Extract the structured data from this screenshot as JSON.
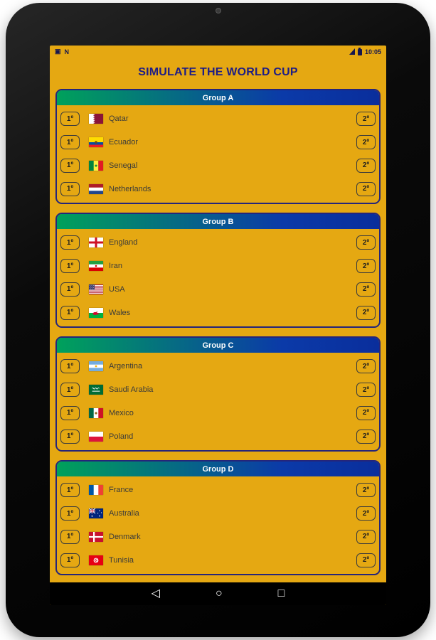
{
  "status_bar": {
    "time": "10:05",
    "left_icon_glyphs": [
      "▣",
      "N"
    ],
    "left_icon_names": [
      "image-notification-icon",
      "nfc-icon"
    ],
    "right_icon_names": [
      "signal-icon",
      "battery-icon"
    ]
  },
  "header": {
    "title": "SIMULATE THE WORLD CUP"
  },
  "buttons": {
    "first_place": "1º",
    "second_place": "2º"
  },
  "groups": [
    {
      "name": "Group A",
      "teams": [
        {
          "name": "Qatar",
          "flag": "qatar"
        },
        {
          "name": "Ecuador",
          "flag": "ecuador"
        },
        {
          "name": "Senegal",
          "flag": "senegal"
        },
        {
          "name": "Netherlands",
          "flag": "netherlands"
        }
      ]
    },
    {
      "name": "Group B",
      "teams": [
        {
          "name": "England",
          "flag": "england"
        },
        {
          "name": "Iran",
          "flag": "iran"
        },
        {
          "name": "USA",
          "flag": "usa"
        },
        {
          "name": "Wales",
          "flag": "wales"
        }
      ]
    },
    {
      "name": "Group C",
      "teams": [
        {
          "name": "Argentina",
          "flag": "argentina"
        },
        {
          "name": "Saudi Arabia",
          "flag": "saudi-arabia"
        },
        {
          "name": "Mexico",
          "flag": "mexico"
        },
        {
          "name": "Poland",
          "flag": "poland"
        }
      ]
    },
    {
      "name": "Group D",
      "teams": [
        {
          "name": "France",
          "flag": "france"
        },
        {
          "name": "Australia",
          "flag": "australia"
        },
        {
          "name": "Denmark",
          "flag": "denmark"
        },
        {
          "name": "Tunisia",
          "flag": "tunisia"
        }
      ]
    }
  ],
  "nav_bar": {
    "back_glyph": "◁",
    "home_glyph": "○",
    "recents_glyph": "□"
  },
  "colors": {
    "app_background": "#E5A812",
    "group_header_green": "#00A15B",
    "group_header_blue": "#0A36A6",
    "title_text": "#1D1D86",
    "card_border": "#25257A",
    "header_text": "#ffffff",
    "bezel": "#000000"
  }
}
